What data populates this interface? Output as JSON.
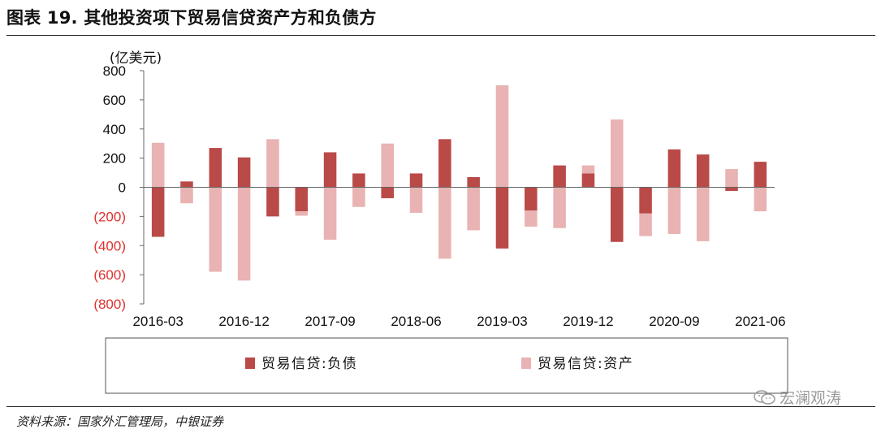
{
  "header": {
    "title": "图表 19. 其他投资项下贸易信贷资产方和负债方"
  },
  "footer": {
    "source": "资料来源：国家外汇管理局，中银证券",
    "watermark": "宏澜观涛"
  },
  "chart_data": {
    "type": "bar",
    "ylabel": "(亿美元)",
    "ylim": [
      -800,
      800
    ],
    "yticks": [
      800,
      600,
      400,
      200,
      0,
      -200,
      -400,
      -600,
      -800
    ],
    "ytick_labels": [
      "800",
      "600",
      "400",
      "200",
      "0",
      "(200)",
      "(400)",
      "(600)",
      "(800)"
    ],
    "negative_label_color": "#e03030",
    "categories": [
      "2016-03",
      "2016-06",
      "2016-09",
      "2016-12",
      "2017-03",
      "2017-06",
      "2017-09",
      "2017-12",
      "2018-03",
      "2018-06",
      "2018-09",
      "2018-12",
      "2019-03",
      "2019-06",
      "2019-09",
      "2019-12",
      "2020-03",
      "2020-06",
      "2020-09",
      "2020-12",
      "2021-03",
      "2021-06"
    ],
    "xtick_labels": [
      "2016-03",
      "2016-12",
      "2017-09",
      "2018-06",
      "2019-03",
      "2019-12",
      "2020-09",
      "2021-06"
    ],
    "bar_mode": "stacked",
    "series": [
      {
        "name": "贸易信贷:负债",
        "color": "#b94a48",
        "values": [
          -340,
          40,
          270,
          205,
          -200,
          -165,
          240,
          95,
          -75,
          95,
          330,
          70,
          -420,
          -160,
          150,
          95,
          -375,
          -180,
          260,
          225,
          -25,
          175
        ]
      },
      {
        "name": "贸易信贷:资产",
        "color": "#e8b3b2",
        "values": [
          305,
          -110,
          -580,
          -640,
          330,
          -30,
          -360,
          -135,
          300,
          -175,
          -490,
          -295,
          700,
          -110,
          -280,
          55,
          465,
          -155,
          -320,
          -370,
          125,
          -165
        ]
      }
    ],
    "legend": "bottom"
  }
}
